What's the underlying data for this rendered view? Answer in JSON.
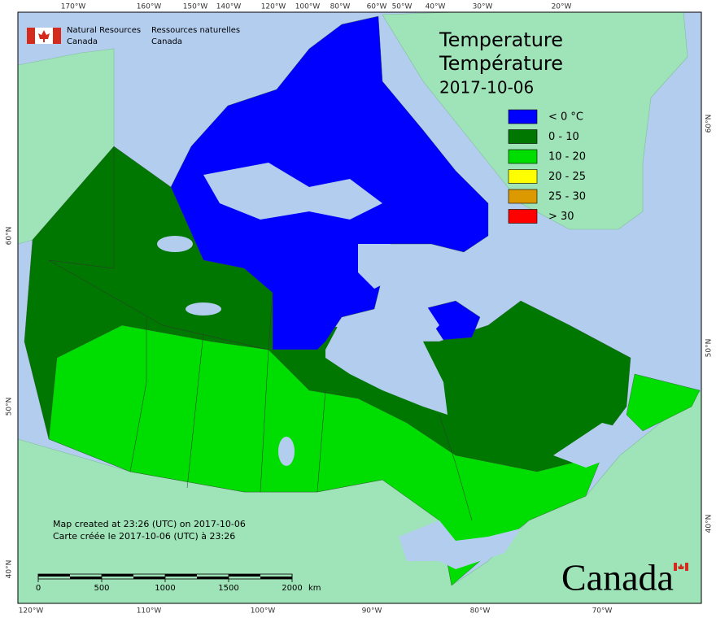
{
  "logo": {
    "en": [
      "Natural Resources",
      "Canada"
    ],
    "fr": [
      "Ressources naturelles",
      "Canada"
    ]
  },
  "title": [
    "Temperature",
    "Température",
    "2017-10-06"
  ],
  "legend": [
    {
      "label": "< 0 °C",
      "color": "#0000ff"
    },
    {
      "label": "0 - 10",
      "color": "#007700"
    },
    {
      "label": "10 - 20",
      "color": "#00dd00"
    },
    {
      "label": "20 - 25",
      "color": "#ffff00"
    },
    {
      "label": "25 - 30",
      "color": "#dd9900"
    },
    {
      "label": "> 30",
      "color": "#ff0000"
    }
  ],
  "graticule": {
    "top": [
      "170°W",
      "160°W",
      "150°W",
      "140°W",
      "120°W",
      "100°W",
      "80°W",
      "60°W",
      "50°W",
      "40°W",
      "30°W",
      "20°W"
    ],
    "bottom": [
      "120°W",
      "110°W",
      "100°W",
      "90°W",
      "80°W",
      "70°W"
    ],
    "left": [
      "60°N",
      "50°N",
      "40°N"
    ],
    "right": [
      "60°N",
      "50°N",
      "40°N"
    ]
  },
  "footer": [
    "Map created at 23:26 (UTC) on 2017-10-06",
    "Carte créée le 2017-10-06 (UTC) à 23:26"
  ],
  "scale_bar": {
    "ticks": [
      0,
      500,
      1000,
      1500,
      2000
    ],
    "unit": "km"
  },
  "wordmark": "Canada"
}
